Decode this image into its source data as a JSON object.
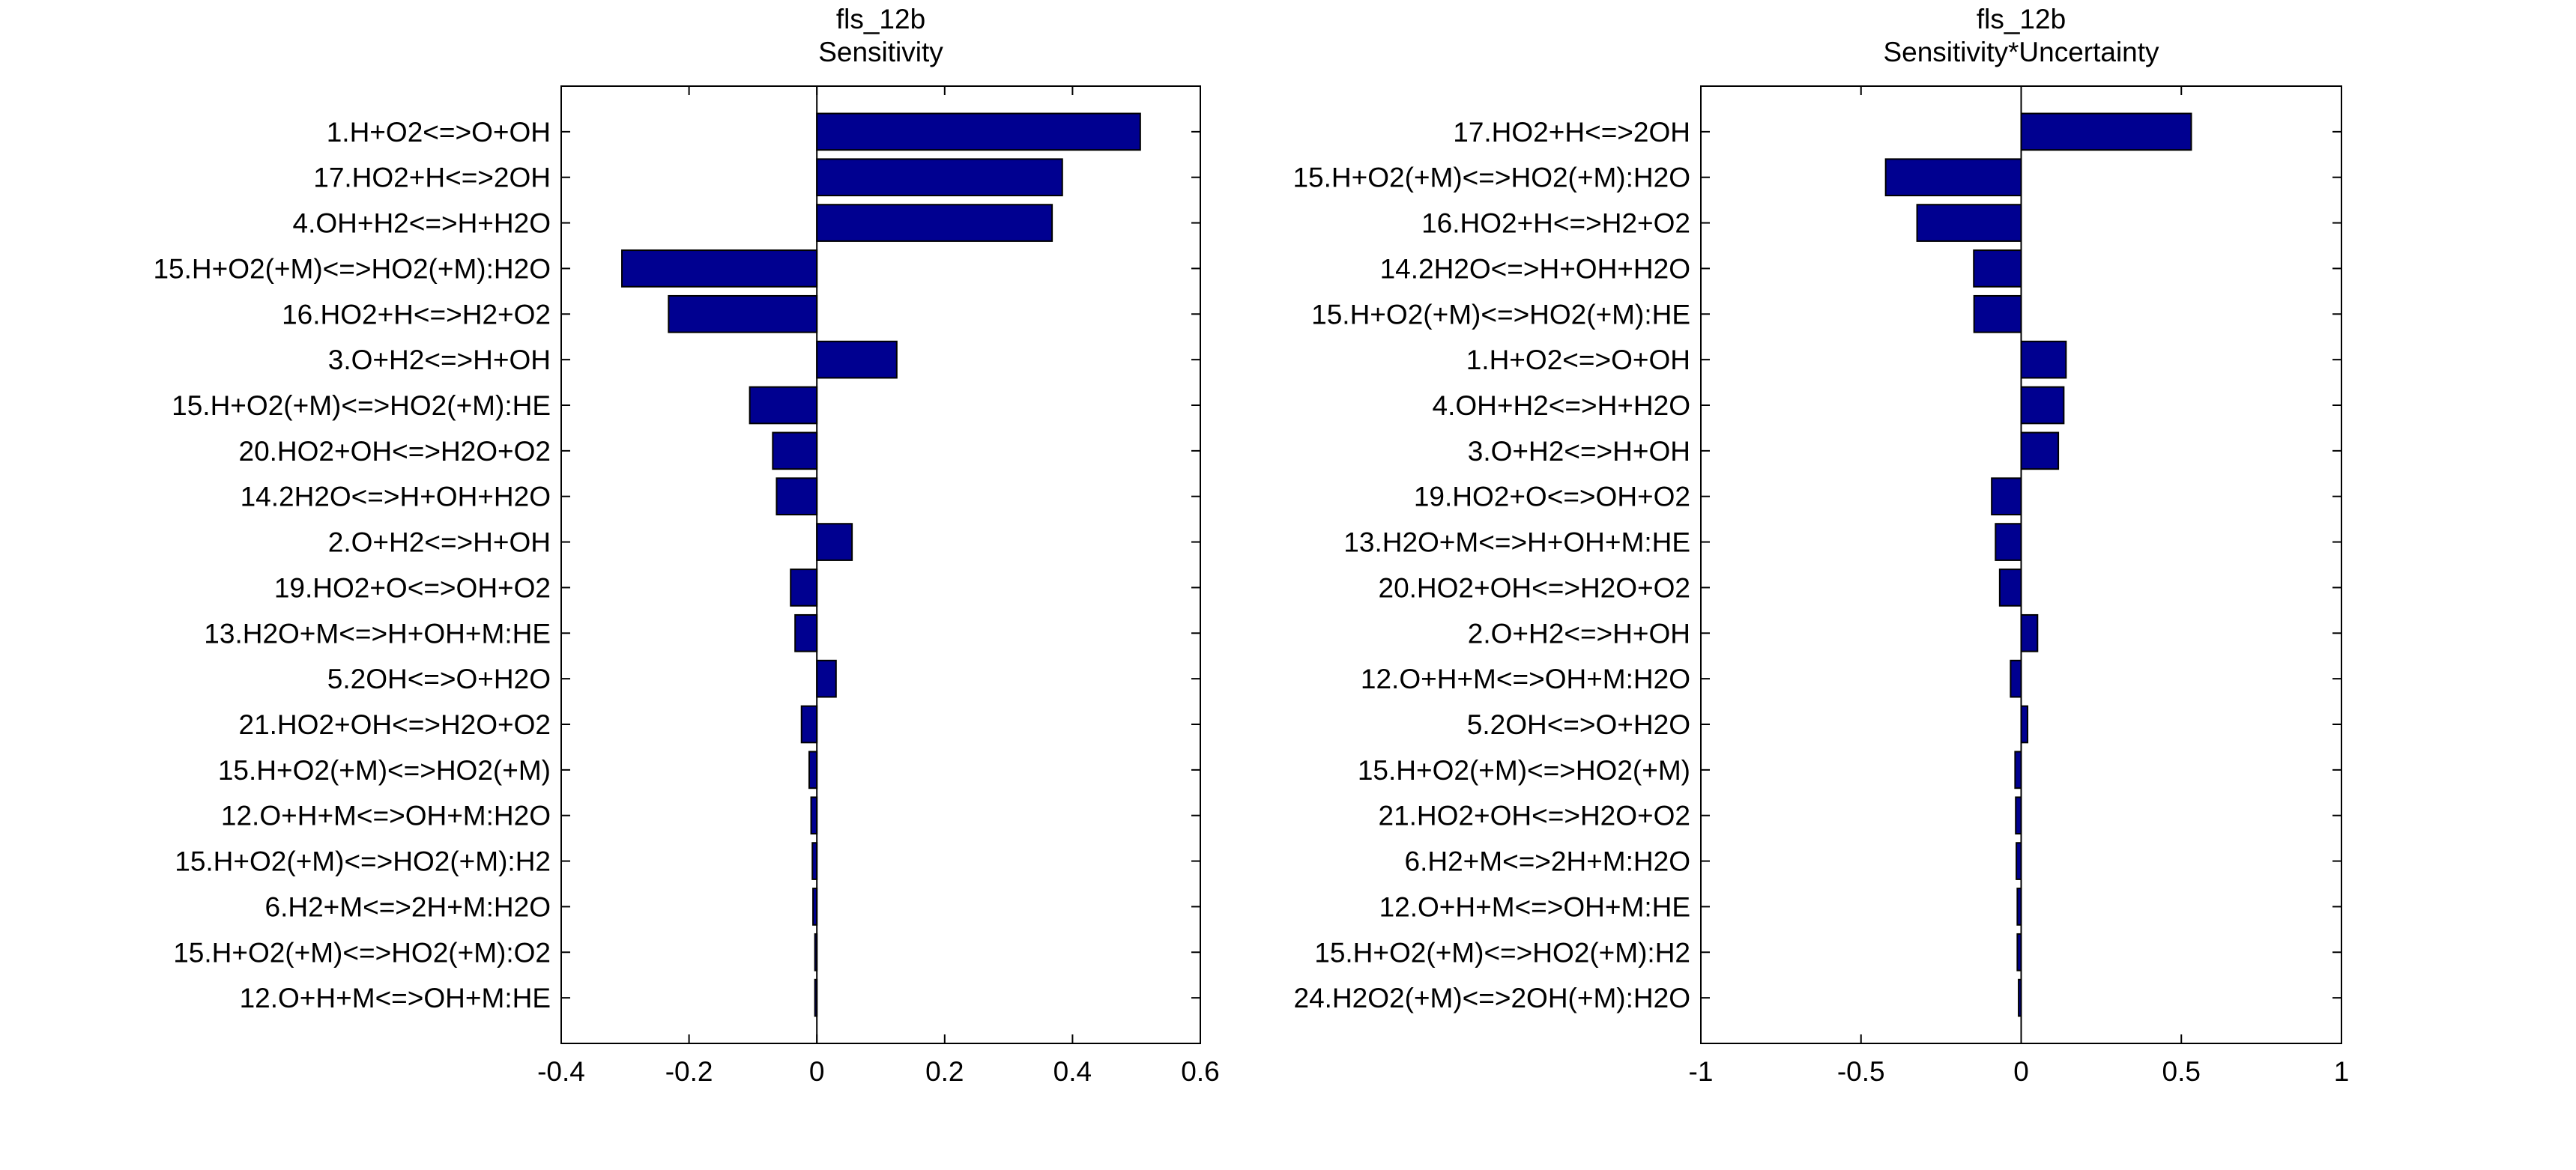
{
  "colors": {
    "bar": "#000090",
    "edge": "#000000"
  },
  "chart_data": [
    {
      "type": "bar",
      "orientation": "horizontal",
      "title_line1": "fls_12b",
      "title_line2": "Sensitivity",
      "xlim": [
        -0.4,
        0.6
      ],
      "xticks": [
        "-0.4",
        "-0.2",
        "0",
        "0.2",
        "0.4",
        "0.6"
      ],
      "xtick_values": [
        -0.4,
        -0.2,
        0,
        0.2,
        0.4,
        0.6
      ],
      "categories": [
        "1.H+O2<=>O+OH",
        "17.HO2+H<=>2OH",
        "4.OH+H2<=>H+H2O",
        "15.H+O2(+M)<=>HO2(+M):H2O",
        "16.HO2+H<=>H2+O2",
        "3.O+H2<=>H+OH",
        "15.H+O2(+M)<=>HO2(+M):HE",
        "20.HO2+OH<=>H2O+O2",
        "14.2H2O<=>H+OH+H2O",
        "2.O+H2<=>H+OH",
        "19.HO2+O<=>OH+O2",
        "13.H2O+M<=>H+OH+M:HE",
        "5.2OH<=>O+H2O",
        "21.HO2+OH<=>H2O+O2",
        "15.H+O2(+M)<=>HO2(+M)",
        "12.O+H+M<=>OH+M:H2O",
        "15.H+O2(+M)<=>HO2(+M):H2",
        "6.H2+M<=>2H+M:H2O",
        "15.H+O2(+M)<=>HO2(+M):O2",
        "12.O+H+M<=>OH+M:HE"
      ],
      "values": [
        0.506,
        0.384,
        0.368,
        -0.305,
        -0.232,
        0.125,
        -0.105,
        -0.069,
        -0.063,
        0.055,
        -0.041,
        -0.034,
        0.03,
        -0.024,
        -0.012,
        -0.009,
        -0.007,
        -0.006,
        -0.003,
        -0.003
      ]
    },
    {
      "type": "bar",
      "orientation": "horizontal",
      "title_line1": "fls_12b",
      "title_line2": "Sensitivity*Uncertainty",
      "xlim": [
        -1,
        1
      ],
      "xticks": [
        "-1",
        "-0.5",
        "0",
        "0.5",
        "1"
      ],
      "xtick_values": [
        -1,
        -0.5,
        0,
        0.5,
        1
      ],
      "categories": [
        "17.HO2+H<=>2OH",
        "15.H+O2(+M)<=>HO2(+M):H2O",
        "16.HO2+H<=>H2+O2",
        "14.2H2O<=>H+OH+H2O",
        "15.H+O2(+M)<=>HO2(+M):HE",
        "1.H+O2<=>O+OH",
        "4.OH+H2<=>H+H2O",
        "3.O+H2<=>H+OH",
        "19.HO2+O<=>OH+O2",
        "13.H2O+M<=>H+OH+M:HE",
        "20.HO2+OH<=>H2O+O2",
        "2.O+H2<=>H+OH",
        "12.O+H+M<=>OH+M:H2O",
        "5.2OH<=>O+H2O",
        "15.H+O2(+M)<=>HO2(+M)",
        "21.HO2+OH<=>H2O+O2",
        "6.H2+M<=>2H+M:H2O",
        "12.O+H+M<=>OH+M:HE",
        "15.H+O2(+M)<=>HO2(+M):H2",
        "24.H2O2(+M)<=>2OH(+M):H2O"
      ],
      "values": [
        0.531,
        -0.423,
        -0.325,
        -0.148,
        -0.147,
        0.14,
        0.133,
        0.116,
        -0.092,
        -0.08,
        -0.067,
        0.051,
        -0.033,
        0.02,
        -0.019,
        -0.017,
        -0.015,
        -0.012,
        -0.012,
        -0.008
      ]
    }
  ]
}
